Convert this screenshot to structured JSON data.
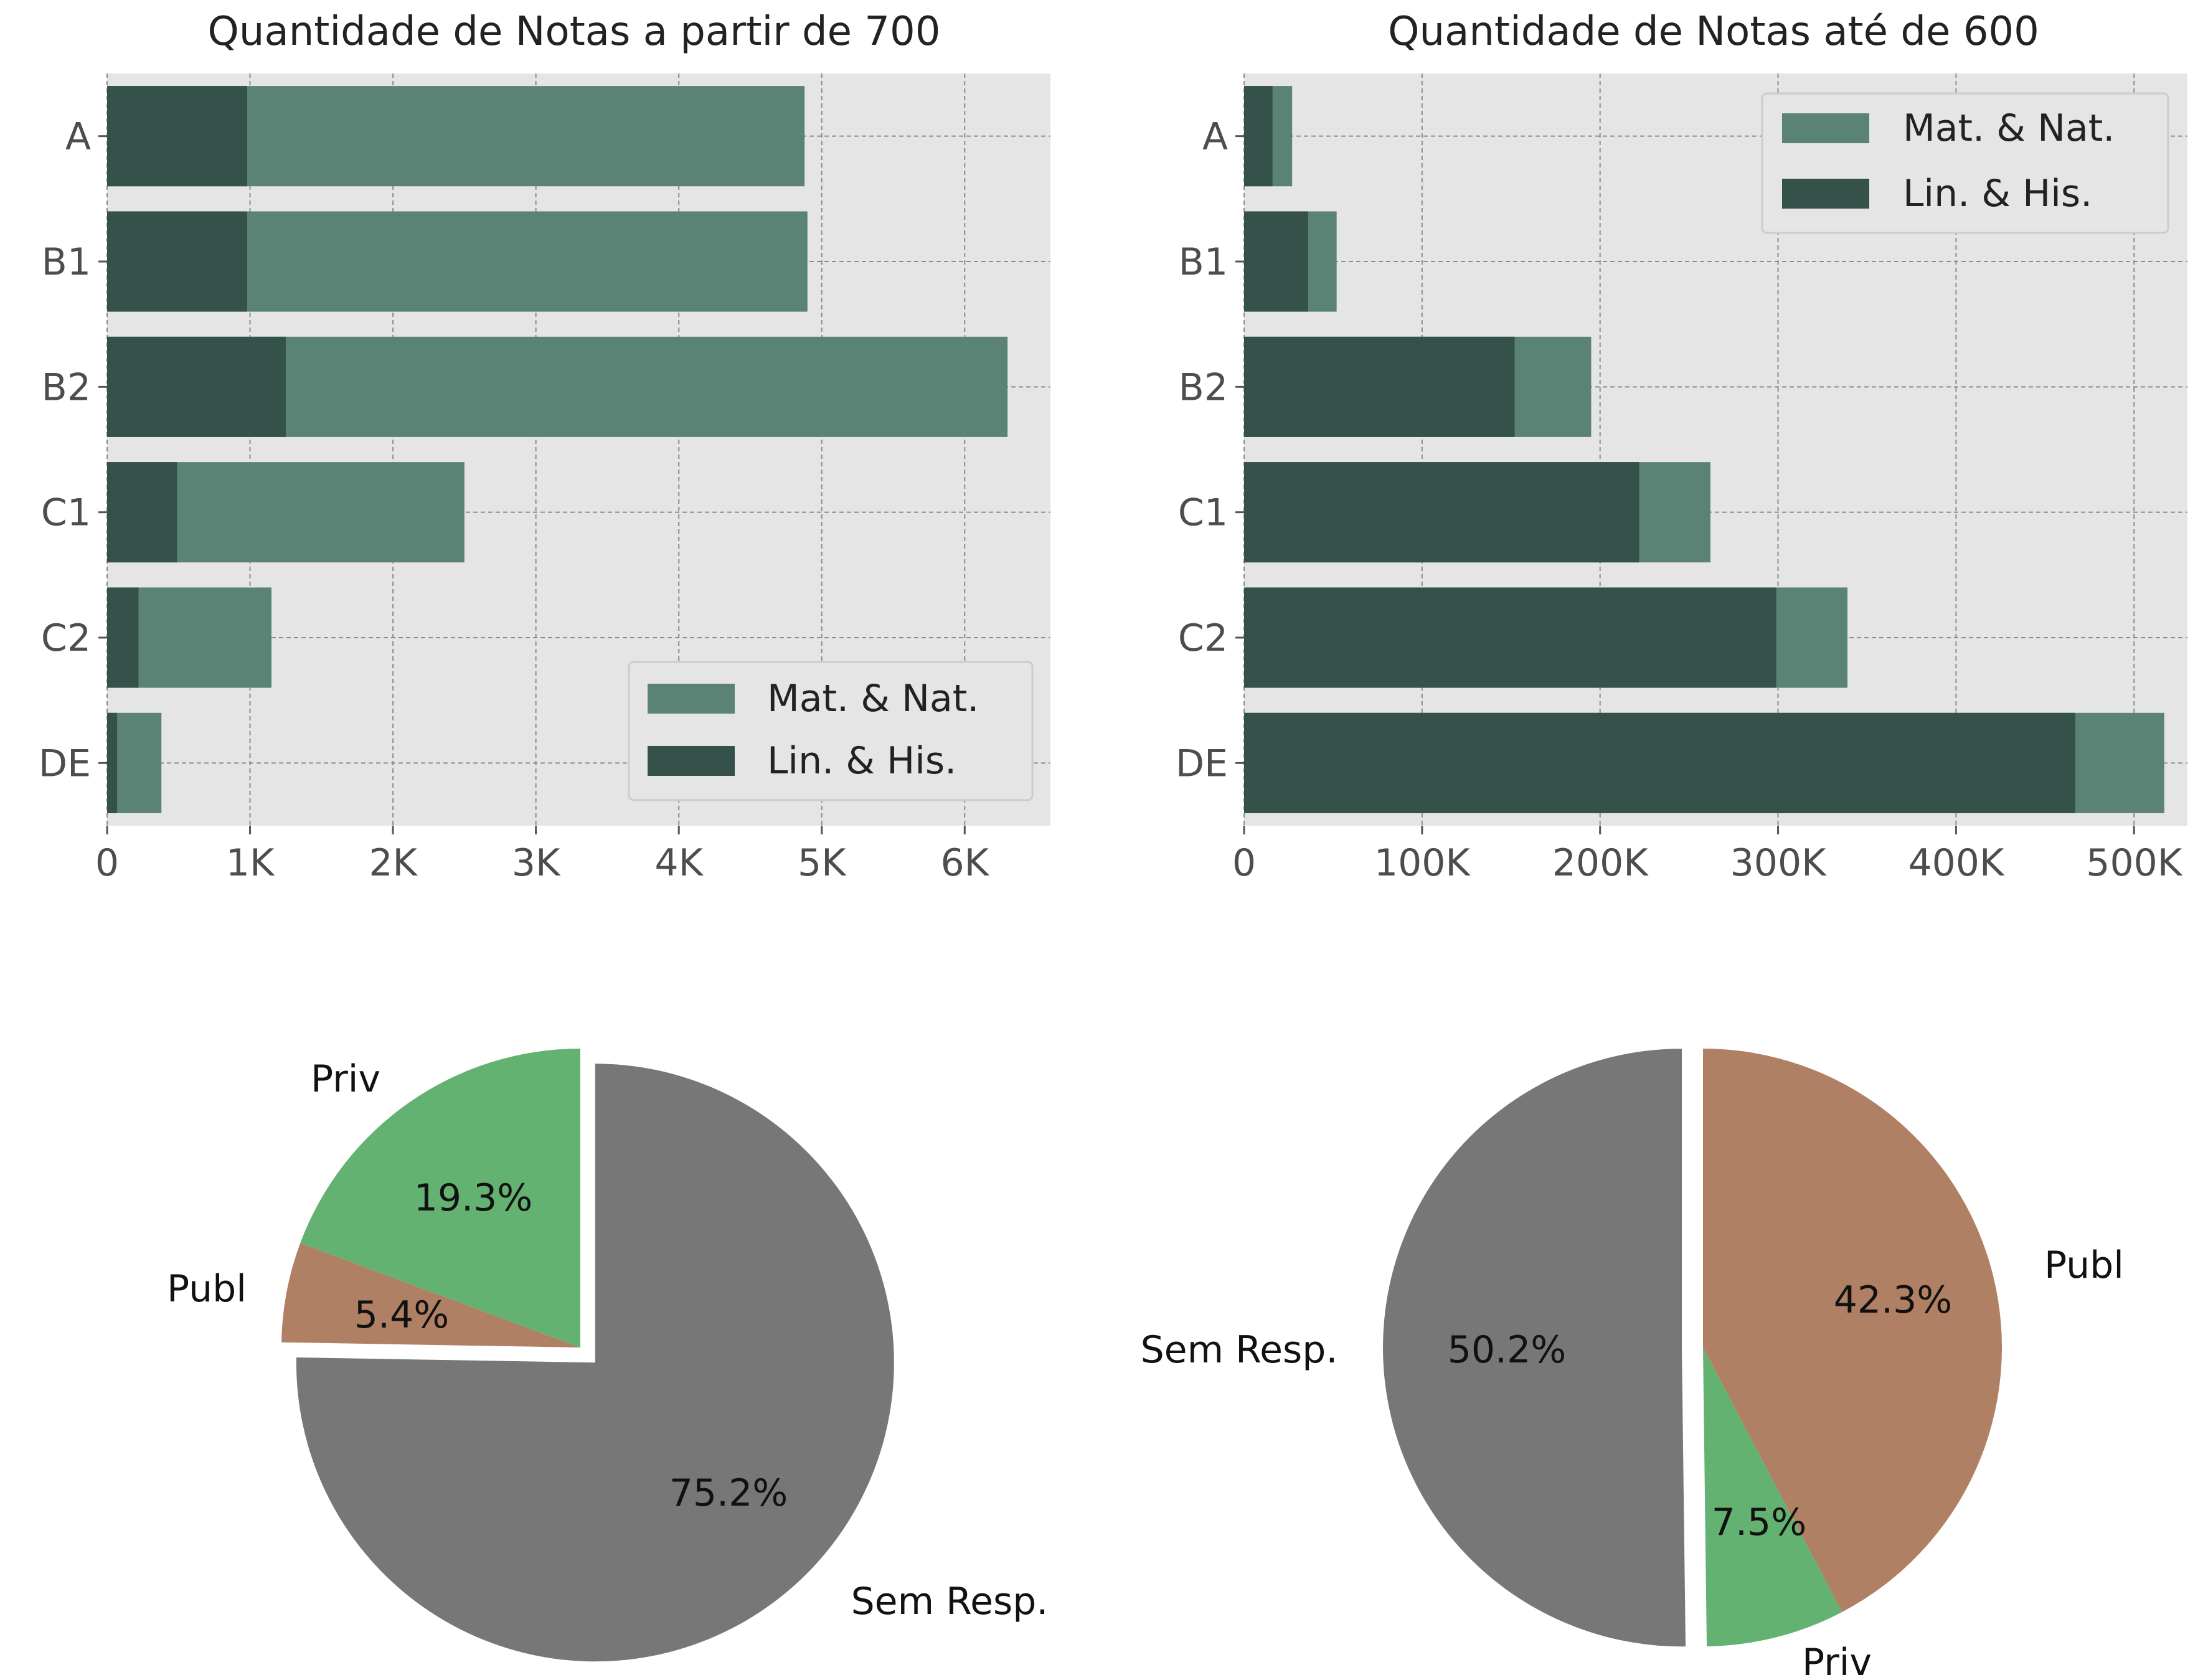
{
  "colors": {
    "panel_bg": "#e5e5e5",
    "grid": "#8c8c8c",
    "mat_nat": "#5b8375",
    "lin_his": "#34514a",
    "priv": "#63b271",
    "publ": "#b08064",
    "sem_resp": "#777777"
  },
  "chart_data": [
    {
      "type": "bar",
      "orientation": "horizontal",
      "stacked": false,
      "title": "Quantidade de Notas a partir de 700",
      "categories": [
        "A",
        "B1",
        "B2",
        "C1",
        "C2",
        "DE"
      ],
      "series": [
        {
          "name": "Mat. & Nat.",
          "color": "#5b8375",
          "values": [
            4880,
            4900,
            6300,
            2500,
            1150,
            380
          ]
        },
        {
          "name": "Lin. & His.",
          "color": "#34514a",
          "values": [
            980,
            980,
            1250,
            490,
            220,
            70
          ]
        }
      ],
      "xlim": [
        0,
        6600
      ],
      "xticks": [
        0,
        1000,
        2000,
        3000,
        4000,
        5000,
        6000
      ],
      "xtick_labels": [
        "0",
        "1K",
        "2K",
        "3K",
        "4K",
        "5K",
        "6K"
      ],
      "grid": true,
      "legend_position": "lower-right"
    },
    {
      "type": "bar",
      "orientation": "horizontal",
      "stacked": false,
      "title": "Quantidade de Notas até de 600",
      "categories": [
        "A",
        "B1",
        "B2",
        "C1",
        "C2",
        "DE"
      ],
      "series": [
        {
          "name": "Mat. & Nat.",
          "color": "#5b8375",
          "values": [
            27000,
            52000,
            195000,
            262000,
            339000,
            517000
          ]
        },
        {
          "name": "Lin. & His.",
          "color": "#34514a",
          "values": [
            16000,
            36000,
            152000,
            222000,
            299000,
            467000
          ]
        }
      ],
      "xlim": [
        0,
        530000
      ],
      "xticks": [
        0,
        100000,
        200000,
        300000,
        400000,
        500000
      ],
      "xtick_labels": [
        "0",
        "100K",
        "200K",
        "300K",
        "400K",
        "500K"
      ],
      "grid": true,
      "legend_position": "upper-right"
    },
    {
      "type": "pie",
      "slices": [
        {
          "label": "Sem Resp.",
          "value": 75.2,
          "pct_label": "75.2%",
          "color": "#777777",
          "exploded": true
        },
        {
          "label": "Publ",
          "value": 5.4,
          "pct_label": "5.4%",
          "color": "#b08064",
          "exploded": false
        },
        {
          "label": "Priv",
          "value": 19.3,
          "pct_label": "19.3%",
          "color": "#63b271",
          "exploded": false
        }
      ],
      "start_angle_deg": 0,
      "direction": "clockwise-from-top"
    },
    {
      "type": "pie",
      "slices": [
        {
          "label": "Publ",
          "value": 42.3,
          "pct_label": "42.3%",
          "color": "#b08064",
          "exploded": false
        },
        {
          "label": "Priv",
          "value": 7.5,
          "pct_label": "7.5%",
          "color": "#63b271",
          "exploded": false
        },
        {
          "label": "Sem Resp.",
          "value": 50.2,
          "pct_label": "50.2%",
          "color": "#777777",
          "exploded": true
        }
      ],
      "start_angle_deg": 0,
      "direction": "clockwise-from-top"
    }
  ]
}
